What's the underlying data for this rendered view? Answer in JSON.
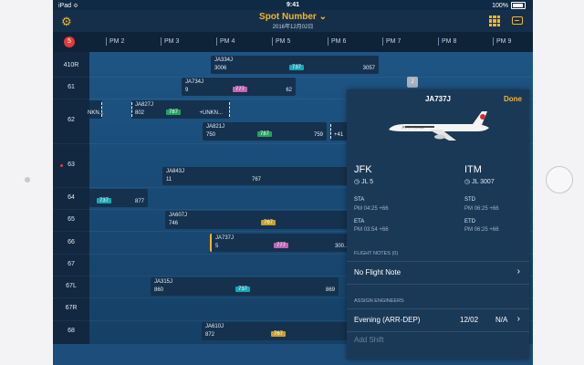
{
  "status_bar": {
    "left": "iPad ≎",
    "time": "9:41",
    "battery": "100%"
  },
  "header": {
    "title": "Spot Number ⌄",
    "date": "2016年12月02日"
  },
  "timeline": {
    "alert_count": "5",
    "ticks": [
      "PM 2",
      "PM 3",
      "PM 4",
      "PM 5",
      "PM 6",
      "PM 7",
      "PM 8",
      "PM 9"
    ]
  },
  "rows": [
    "410R",
    "61",
    "62",
    "63",
    "64",
    "65",
    "66",
    "67",
    "67L",
    "67R",
    "68"
  ],
  "bars": [
    {
      "reg": "JA334J",
      "fl1": "3006",
      "fl2": "3057",
      "type": "737",
      "color": "teal"
    },
    {
      "reg": "JA734J",
      "fl1": "9",
      "fl2": "62",
      "type": "777",
      "color": "pink"
    },
    {
      "reg": "JA827J",
      "fl1": "802",
      "fl2": "+UNKN...",
      "type": "787",
      "color": "green"
    },
    {
      "reg": "JA821J",
      "fl1": "750",
      "fl2": "759",
      "type": "787",
      "color": "green"
    },
    {
      "reg": "JA843J",
      "fl1": "11",
      "fl2": "",
      "type": "767",
      "color": "none"
    },
    {
      "reg": "",
      "fl1": "",
      "fl2": "877",
      "type": "737",
      "color": "teal"
    },
    {
      "reg": "JA607J",
      "fl1": "746",
      "fl2": "",
      "type": "767",
      "color": "gold"
    },
    {
      "reg": "JA737J",
      "fl1": "5",
      "fl2": "300...",
      "type": "777",
      "color": "pink"
    },
    {
      "reg": "JA315J",
      "fl1": "860",
      "fl2": "869",
      "type": "737",
      "color": "teal"
    },
    {
      "reg": "JA610J",
      "fl1": "872",
      "fl2": "",
      "type": "767",
      "color": "gold"
    }
  ],
  "extra": {
    "unkn_left": "NKN...",
    "plus41": "+41",
    "jmark": "J"
  },
  "panel": {
    "registration": "JA737J",
    "done": "Done",
    "from": "JFK",
    "from_flight": "JL 5",
    "to": "ITM",
    "to_flight": "JL 3007",
    "sta_label": "STA",
    "sta_value": "PM 04:25 +66",
    "std_label": "STD",
    "std_value": "PM 06:25 +66",
    "eta_label": "ETA",
    "eta_value": "PM 03:54 +66",
    "etd_label": "ETD",
    "etd_value": "PM 06:25 +66",
    "flight_notes_header": "FLIGHT NOTES (0)",
    "no_flight_note": "No Flight Note",
    "assign_engineers_header": "ASSIGN ENGINEERS",
    "shift_name": "Evening (ARR-DEP)",
    "shift_date": "12/02",
    "shift_na": "N/A",
    "add_shift": "Add Shift"
  }
}
